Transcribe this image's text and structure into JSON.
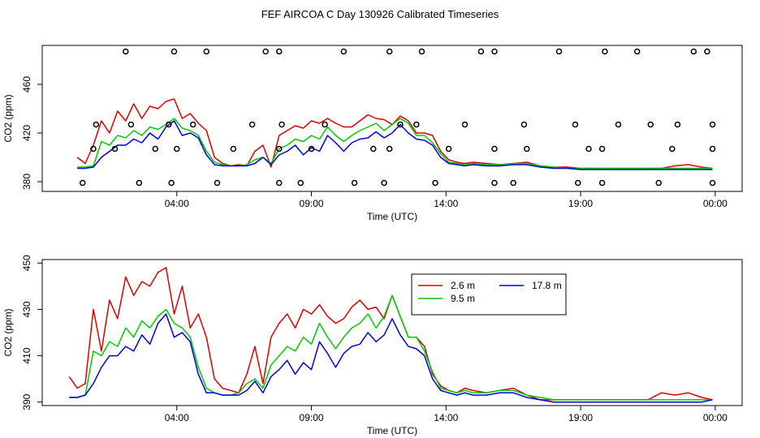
{
  "title": "FEF AIRCOA C  Day 130926  Calibrated Timeseries",
  "colors": {
    "red": "#e00000",
    "green": "#00cc00",
    "blue": "#0000dd",
    "frame": "#000000"
  },
  "chart_data": [
    {
      "type": "scatter",
      "xlabel": "Time (UTC)",
      "ylabel": "CO2 (ppm)",
      "xlim": [
        -1.0,
        25.0
      ],
      "ylim": [
        372,
        492
      ],
      "xticks": [
        4,
        9,
        14,
        19,
        24
      ],
      "xticklabels": [
        "04:00",
        "09:00",
        "14:00",
        "19:00",
        "00:00"
      ],
      "yticks": [
        380,
        420,
        460
      ],
      "yticklabels": [
        "380",
        "420",
        "460"
      ],
      "series": [
        {
          "id": "2.6m",
          "color": "#e00000",
          "x": [
            0.3,
            0.6,
            0.9,
            1.2,
            1.5,
            1.8,
            2.1,
            2.4,
            2.7,
            3.0,
            3.3,
            3.6,
            3.9,
            4.2,
            4.5,
            4.8,
            5.1,
            5.4,
            5.7,
            6.0,
            6.3,
            6.6,
            6.9,
            7.2,
            7.5,
            7.8,
            8.1,
            8.4,
            8.7,
            9.0,
            9.3,
            9.6,
            9.9,
            10.2,
            10.5,
            10.8,
            11.1,
            11.4,
            11.7,
            12.0,
            12.3,
            12.6,
            12.9,
            13.2,
            13.5,
            13.8,
            14.1,
            14.4,
            14.7,
            15.0,
            15.5,
            16.0,
            16.5,
            17.0,
            17.5,
            18.0,
            18.5,
            19.0,
            19.5,
            20.0,
            20.5,
            21.0,
            21.5,
            22.0,
            22.5,
            23.0,
            23.5,
            23.9
          ],
          "y": [
            400,
            395,
            410,
            430,
            420,
            438,
            430,
            444,
            432,
            442,
            440,
            446,
            448,
            432,
            436,
            428,
            422,
            400,
            395,
            393,
            394,
            393,
            405,
            410,
            392,
            418,
            422,
            426,
            424,
            430,
            428,
            432,
            428,
            425,
            425,
            430,
            435,
            432,
            431,
            427,
            434,
            430,
            420,
            420,
            418,
            405,
            398,
            396,
            395,
            396,
            395,
            394,
            395,
            396,
            393,
            392,
            392,
            391,
            391,
            391,
            391,
            391,
            391,
            391,
            393,
            394,
            392,
            391
          ]
        },
        {
          "id": "9.5m",
          "color": "#00cc00",
          "x": [
            0.3,
            0.6,
            0.9,
            1.2,
            1.5,
            1.8,
            2.1,
            2.4,
            2.7,
            3.0,
            3.3,
            3.6,
            3.9,
            4.2,
            4.5,
            4.8,
            5.1,
            5.4,
            5.7,
            6.0,
            6.3,
            6.6,
            6.9,
            7.2,
            7.5,
            7.8,
            8.1,
            8.4,
            8.7,
            9.0,
            9.3,
            9.6,
            9.9,
            10.2,
            10.5,
            10.8,
            11.1,
            11.4,
            11.7,
            12.0,
            12.3,
            12.6,
            12.9,
            13.2,
            13.5,
            13.8,
            14.1,
            14.4,
            14.7,
            15.0,
            15.5,
            16.0,
            16.5,
            17.0,
            17.5,
            18.0,
            18.5,
            19.0,
            19.5,
            20.0,
            20.5,
            21.0,
            21.5,
            22.0,
            22.5,
            23.0,
            23.5,
            23.9
          ],
          "y": [
            392,
            392,
            393,
            413,
            410,
            418,
            416,
            422,
            418,
            425,
            423,
            427,
            432,
            424,
            422,
            418,
            405,
            396,
            394,
            393,
            393,
            394,
            398,
            400,
            395,
            407,
            410,
            415,
            413,
            418,
            415,
            425,
            418,
            413,
            418,
            422,
            425,
            428,
            422,
            427,
            432,
            428,
            418,
            418,
            412,
            403,
            396,
            395,
            394,
            395,
            394,
            394,
            395,
            395,
            393,
            392,
            391,
            391,
            391,
            391,
            391,
            391,
            391,
            391,
            391,
            391,
            391,
            391
          ]
        },
        {
          "id": "17.8m",
          "color": "#0000dd",
          "x": [
            0.3,
            0.6,
            0.9,
            1.2,
            1.5,
            1.8,
            2.1,
            2.4,
            2.7,
            3.0,
            3.3,
            3.6,
            3.9,
            4.2,
            4.5,
            4.8,
            5.1,
            5.4,
            5.7,
            6.0,
            6.3,
            6.6,
            6.9,
            7.2,
            7.5,
            7.8,
            8.1,
            8.4,
            8.7,
            9.0,
            9.3,
            9.6,
            9.9,
            10.2,
            10.5,
            10.8,
            11.1,
            11.4,
            11.7,
            12.0,
            12.3,
            12.6,
            12.9,
            13.2,
            13.5,
            13.8,
            14.1,
            14.4,
            14.7,
            15.0,
            15.5,
            16.0,
            16.5,
            17.0,
            17.5,
            18.0,
            18.5,
            19.0,
            19.5,
            20.0,
            20.5,
            21.0,
            21.5,
            22.0,
            22.5,
            23.0,
            23.5,
            23.9
          ],
          "y": [
            391,
            391,
            392,
            400,
            405,
            410,
            410,
            415,
            412,
            420,
            415,
            425,
            430,
            418,
            420,
            416,
            402,
            394,
            393,
            393,
            393,
            393,
            395,
            400,
            394,
            402,
            405,
            410,
            402,
            408,
            405,
            418,
            412,
            405,
            412,
            415,
            416,
            421,
            416,
            420,
            427,
            420,
            415,
            414,
            410,
            400,
            395,
            394,
            393,
            394,
            393,
            393,
            394,
            394,
            392,
            391,
            391,
            390,
            390,
            390,
            390,
            390,
            390,
            390,
            390,
            390,
            390,
            390
          ]
        }
      ],
      "markers": {
        "x": [
          2.1,
          3.9,
          5.1,
          7.3,
          7.8,
          10.2,
          11.9,
          13.1,
          15.3,
          15.8,
          18.2,
          19.9,
          21.1,
          23.2,
          23.7,
          1.0,
          2.3,
          3.7,
          4.6,
          6.8,
          7.9,
          9.5,
          12.3,
          12.9,
          14.7,
          16.9,
          18.8,
          20.4,
          21.6,
          22.6,
          23.9,
          0.9,
          1.7,
          3.2,
          4.0,
          6.1,
          7.8,
          9.0,
          11.3,
          11.9,
          14.1,
          15.8,
          17.0,
          19.3,
          19.8,
          22.4,
          23.9,
          0.5,
          2.6,
          3.8,
          5.5,
          7.8,
          8.6,
          10.6,
          11.7,
          13.6,
          15.8,
          16.5,
          18.9,
          19.8,
          21.9,
          23.9
        ],
        "y": [
          487,
          487,
          487,
          487,
          487,
          487,
          487,
          487,
          487,
          487,
          487,
          487,
          487,
          487,
          487,
          427,
          427,
          427,
          427,
          427,
          427,
          427,
          427,
          427,
          427,
          427,
          427,
          427,
          427,
          427,
          427,
          407,
          407,
          407,
          407,
          407,
          407,
          407,
          407,
          407,
          407,
          407,
          407,
          407,
          407,
          407,
          407,
          379,
          379,
          379,
          379,
          379,
          379,
          379,
          379,
          379,
          379,
          379,
          379,
          379,
          379,
          379
        ]
      }
    },
    {
      "type": "line",
      "xlabel": "Time (UTC)",
      "ylabel": "CO2 (ppm)",
      "xlim": [
        -1.0,
        25.0
      ],
      "ylim": [
        388.5,
        451.5
      ],
      "xticks": [
        4,
        9,
        14,
        19,
        24
      ],
      "xticklabels": [
        "04:00",
        "09:00",
        "14:00",
        "19:00",
        "00:00"
      ],
      "yticks": [
        390,
        410,
        430,
        450
      ],
      "yticklabels": [
        "390",
        "410",
        "430",
        "450"
      ],
      "legend": [
        {
          "name": "2.6 m",
          "color": "#e00000"
        },
        {
          "name": "17.8 m",
          "color": "#0000dd"
        },
        {
          "name": "9.5 m",
          "color": "#00cc00"
        }
      ],
      "legend_position": "top-right-center",
      "series": [
        {
          "name": "2.6 m",
          "color": "#e00000",
          "x": [
            0.0,
            0.3,
            0.6,
            0.9,
            1.2,
            1.5,
            1.8,
            2.1,
            2.4,
            2.7,
            3.0,
            3.3,
            3.6,
            3.9,
            4.2,
            4.5,
            4.8,
            5.1,
            5.4,
            5.7,
            6.0,
            6.3,
            6.6,
            6.9,
            7.2,
            7.5,
            7.8,
            8.1,
            8.4,
            8.7,
            9.0,
            9.3,
            9.6,
            9.9,
            10.2,
            10.5,
            10.8,
            11.1,
            11.4,
            11.7,
            12.0,
            12.3,
            12.6,
            12.9,
            13.2,
            13.5,
            13.8,
            14.1,
            14.4,
            14.7,
            15.0,
            15.5,
            16.0,
            16.5,
            17.0,
            17.5,
            18.0,
            18.5,
            19.0,
            19.5,
            20.0,
            20.5,
            21.0,
            21.5,
            22.0,
            22.5,
            23.0,
            23.5,
            23.9
          ],
          "y": [
            401,
            396,
            398,
            430,
            412,
            434,
            426,
            444,
            436,
            442,
            440,
            446,
            448,
            428,
            440,
            422,
            428,
            418,
            400,
            396,
            395,
            394,
            402,
            414,
            398,
            418,
            424,
            428,
            422,
            430,
            428,
            432,
            427,
            424,
            426,
            431,
            434,
            430,
            431,
            426,
            436,
            427,
            418,
            418,
            414,
            402,
            397,
            395,
            394,
            396,
            395,
            394,
            395,
            396,
            393,
            391,
            391,
            391,
            391,
            391,
            391,
            391,
            391,
            391,
            394,
            393,
            394,
            392,
            391
          ]
        },
        {
          "name": "9.5 m",
          "color": "#00cc00",
          "x": [
            0.0,
            0.3,
            0.6,
            0.9,
            1.2,
            1.5,
            1.8,
            2.1,
            2.4,
            2.7,
            3.0,
            3.3,
            3.6,
            3.9,
            4.2,
            4.5,
            4.8,
            5.1,
            5.4,
            5.7,
            6.0,
            6.3,
            6.6,
            6.9,
            7.2,
            7.5,
            7.8,
            8.1,
            8.4,
            8.7,
            9.0,
            9.3,
            9.6,
            9.9,
            10.2,
            10.5,
            10.8,
            11.1,
            11.4,
            11.7,
            12.0,
            12.3,
            12.6,
            12.9,
            13.2,
            13.5,
            13.8,
            14.1,
            14.4,
            14.7,
            15.0,
            15.5,
            16.0,
            16.5,
            17.0,
            17.5,
            18.0,
            18.5,
            19.0,
            19.5,
            20.0,
            20.5,
            21.0,
            21.5,
            22.0,
            22.5,
            23.0,
            23.5,
            23.9
          ],
          "y": [
            392,
            392,
            393,
            412,
            410,
            416,
            414,
            422,
            418,
            425,
            422,
            427,
            430,
            424,
            422,
            418,
            405,
            396,
            394,
            393,
            393,
            394,
            398,
            400,
            396,
            406,
            410,
            414,
            412,
            418,
            415,
            424,
            418,
            413,
            418,
            422,
            424,
            428,
            422,
            427,
            436,
            427,
            418,
            418,
            412,
            403,
            396,
            395,
            394,
            395,
            394,
            394,
            395,
            395,
            393,
            392,
            391,
            391,
            391,
            391,
            391,
            391,
            391,
            391,
            391,
            391,
            391,
            391,
            391
          ]
        },
        {
          "name": "17.8 m",
          "color": "#0000dd",
          "x": [
            0.0,
            0.3,
            0.6,
            0.9,
            1.2,
            1.5,
            1.8,
            2.1,
            2.4,
            2.7,
            3.0,
            3.3,
            3.6,
            3.9,
            4.2,
            4.5,
            4.8,
            5.1,
            5.4,
            5.7,
            6.0,
            6.3,
            6.6,
            6.9,
            7.2,
            7.5,
            7.8,
            8.1,
            8.4,
            8.7,
            9.0,
            9.3,
            9.6,
            9.9,
            10.2,
            10.5,
            10.8,
            11.1,
            11.4,
            11.7,
            12.0,
            12.3,
            12.6,
            12.9,
            13.2,
            13.5,
            13.8,
            14.1,
            14.4,
            14.7,
            15.0,
            15.5,
            16.0,
            16.5,
            17.0,
            17.5,
            18.0,
            18.5,
            19.0,
            19.5,
            20.0,
            20.5,
            21.0,
            21.5,
            22.0,
            22.5,
            23.0,
            23.5,
            23.9
          ],
          "y": [
            392,
            392,
            393,
            398,
            405,
            410,
            410,
            414,
            412,
            419,
            415,
            424,
            428,
            418,
            420,
            416,
            402,
            394,
            394,
            393,
            393,
            393,
            395,
            399,
            394,
            401,
            404,
            408,
            402,
            407,
            404,
            416,
            411,
            405,
            411,
            414,
            415,
            420,
            416,
            419,
            426,
            419,
            414,
            413,
            410,
            400,
            395,
            394,
            393,
            394,
            393,
            393,
            394,
            394,
            392,
            391,
            390,
            390,
            390,
            390,
            390,
            390,
            390,
            390,
            390,
            390,
            390,
            390,
            391
          ]
        }
      ]
    }
  ]
}
